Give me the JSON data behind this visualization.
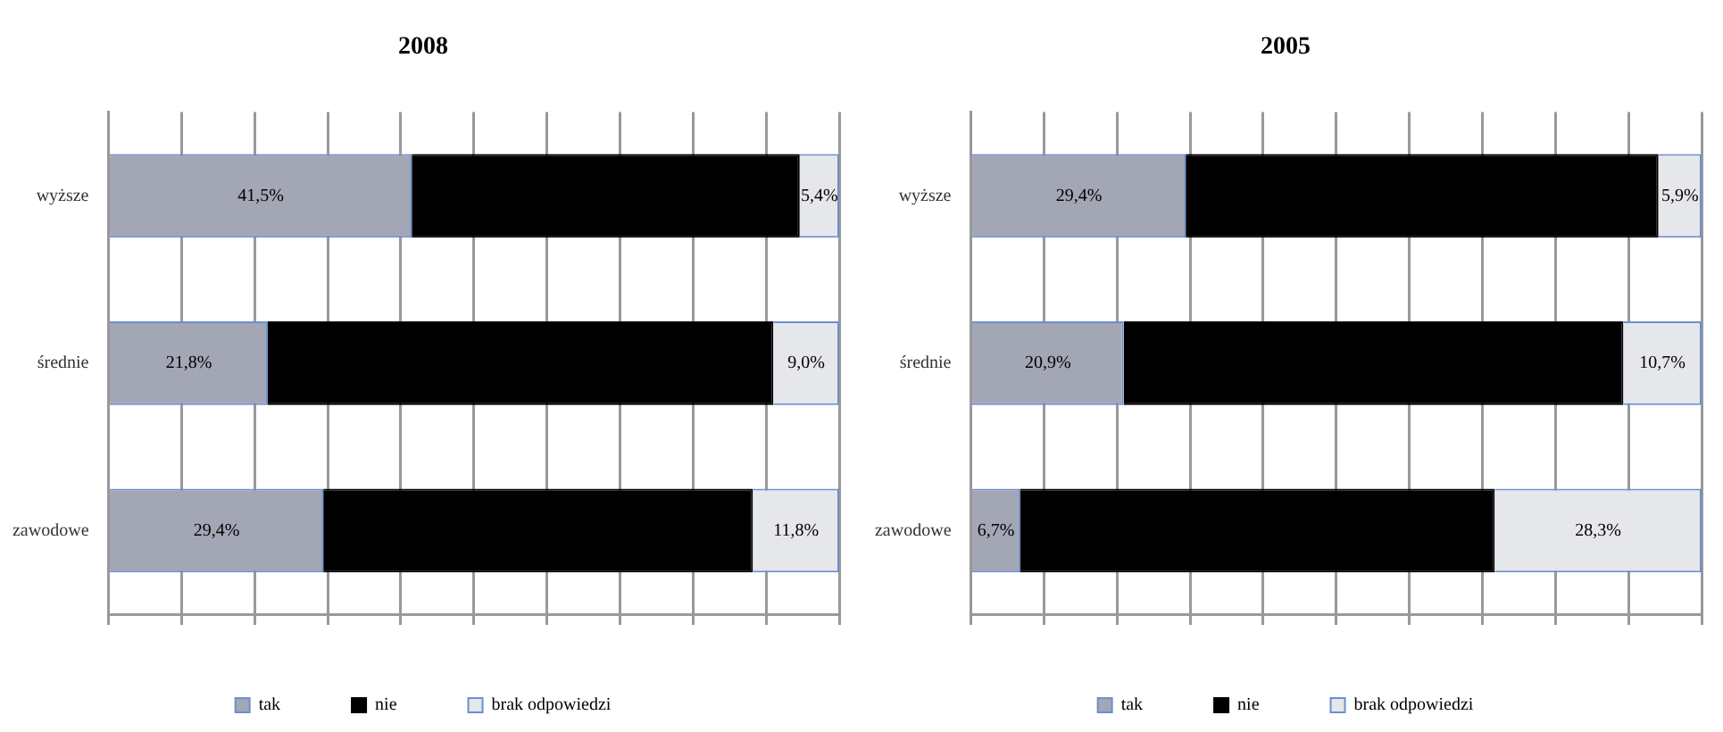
{
  "chart_data": [
    {
      "type": "bar",
      "title": "2008",
      "orientation": "horizontal",
      "stacked": true,
      "categories": [
        "wyższe",
        "średnie",
        "zawodowe"
      ],
      "tick_labels": "y",
      "grid": "x",
      "legend": "bottom",
      "series": [
        {
          "name": "tak",
          "color": "#a3a6b4",
          "values": [
            41.5,
            21.8,
            29.4
          ],
          "value_labels": [
            "41,5%",
            "21,8%",
            "29,4%"
          ]
        },
        {
          "name": "nie",
          "color": "#000000",
          "values": [
            53.1,
            69.2,
            58.8
          ],
          "value_labels": [
            null,
            null,
            null
          ]
        },
        {
          "name": "brak odpowiedzi",
          "color": "#e6e7ea",
          "values": [
            5.4,
            9.0,
            11.8
          ],
          "value_labels": [
            "5,4%",
            "9,0%",
            "11,8%"
          ]
        }
      ]
    },
    {
      "type": "bar",
      "title": "2005",
      "orientation": "horizontal",
      "stacked": true,
      "categories": [
        "wyższe",
        "średnie",
        "zawodowe"
      ],
      "tick_labels": "y",
      "grid": "x",
      "legend": "bottom",
      "series": [
        {
          "name": "tak",
          "color": "#a3a6b4",
          "values": [
            29.4,
            20.9,
            6.7
          ],
          "value_labels": [
            "29,4%",
            "20,9%",
            "6,7%"
          ]
        },
        {
          "name": "nie",
          "color": "#000000",
          "values": [
            64.7,
            68.4,
            65.0
          ],
          "value_labels": [
            null,
            null,
            null
          ]
        },
        {
          "name": "brak odpowiedzi",
          "color": "#e6e7ea",
          "values": [
            5.9,
            10.7,
            28.3
          ],
          "value_labels": [
            "5,9%",
            "10,7%",
            "28,3%"
          ]
        }
      ]
    }
  ]
}
